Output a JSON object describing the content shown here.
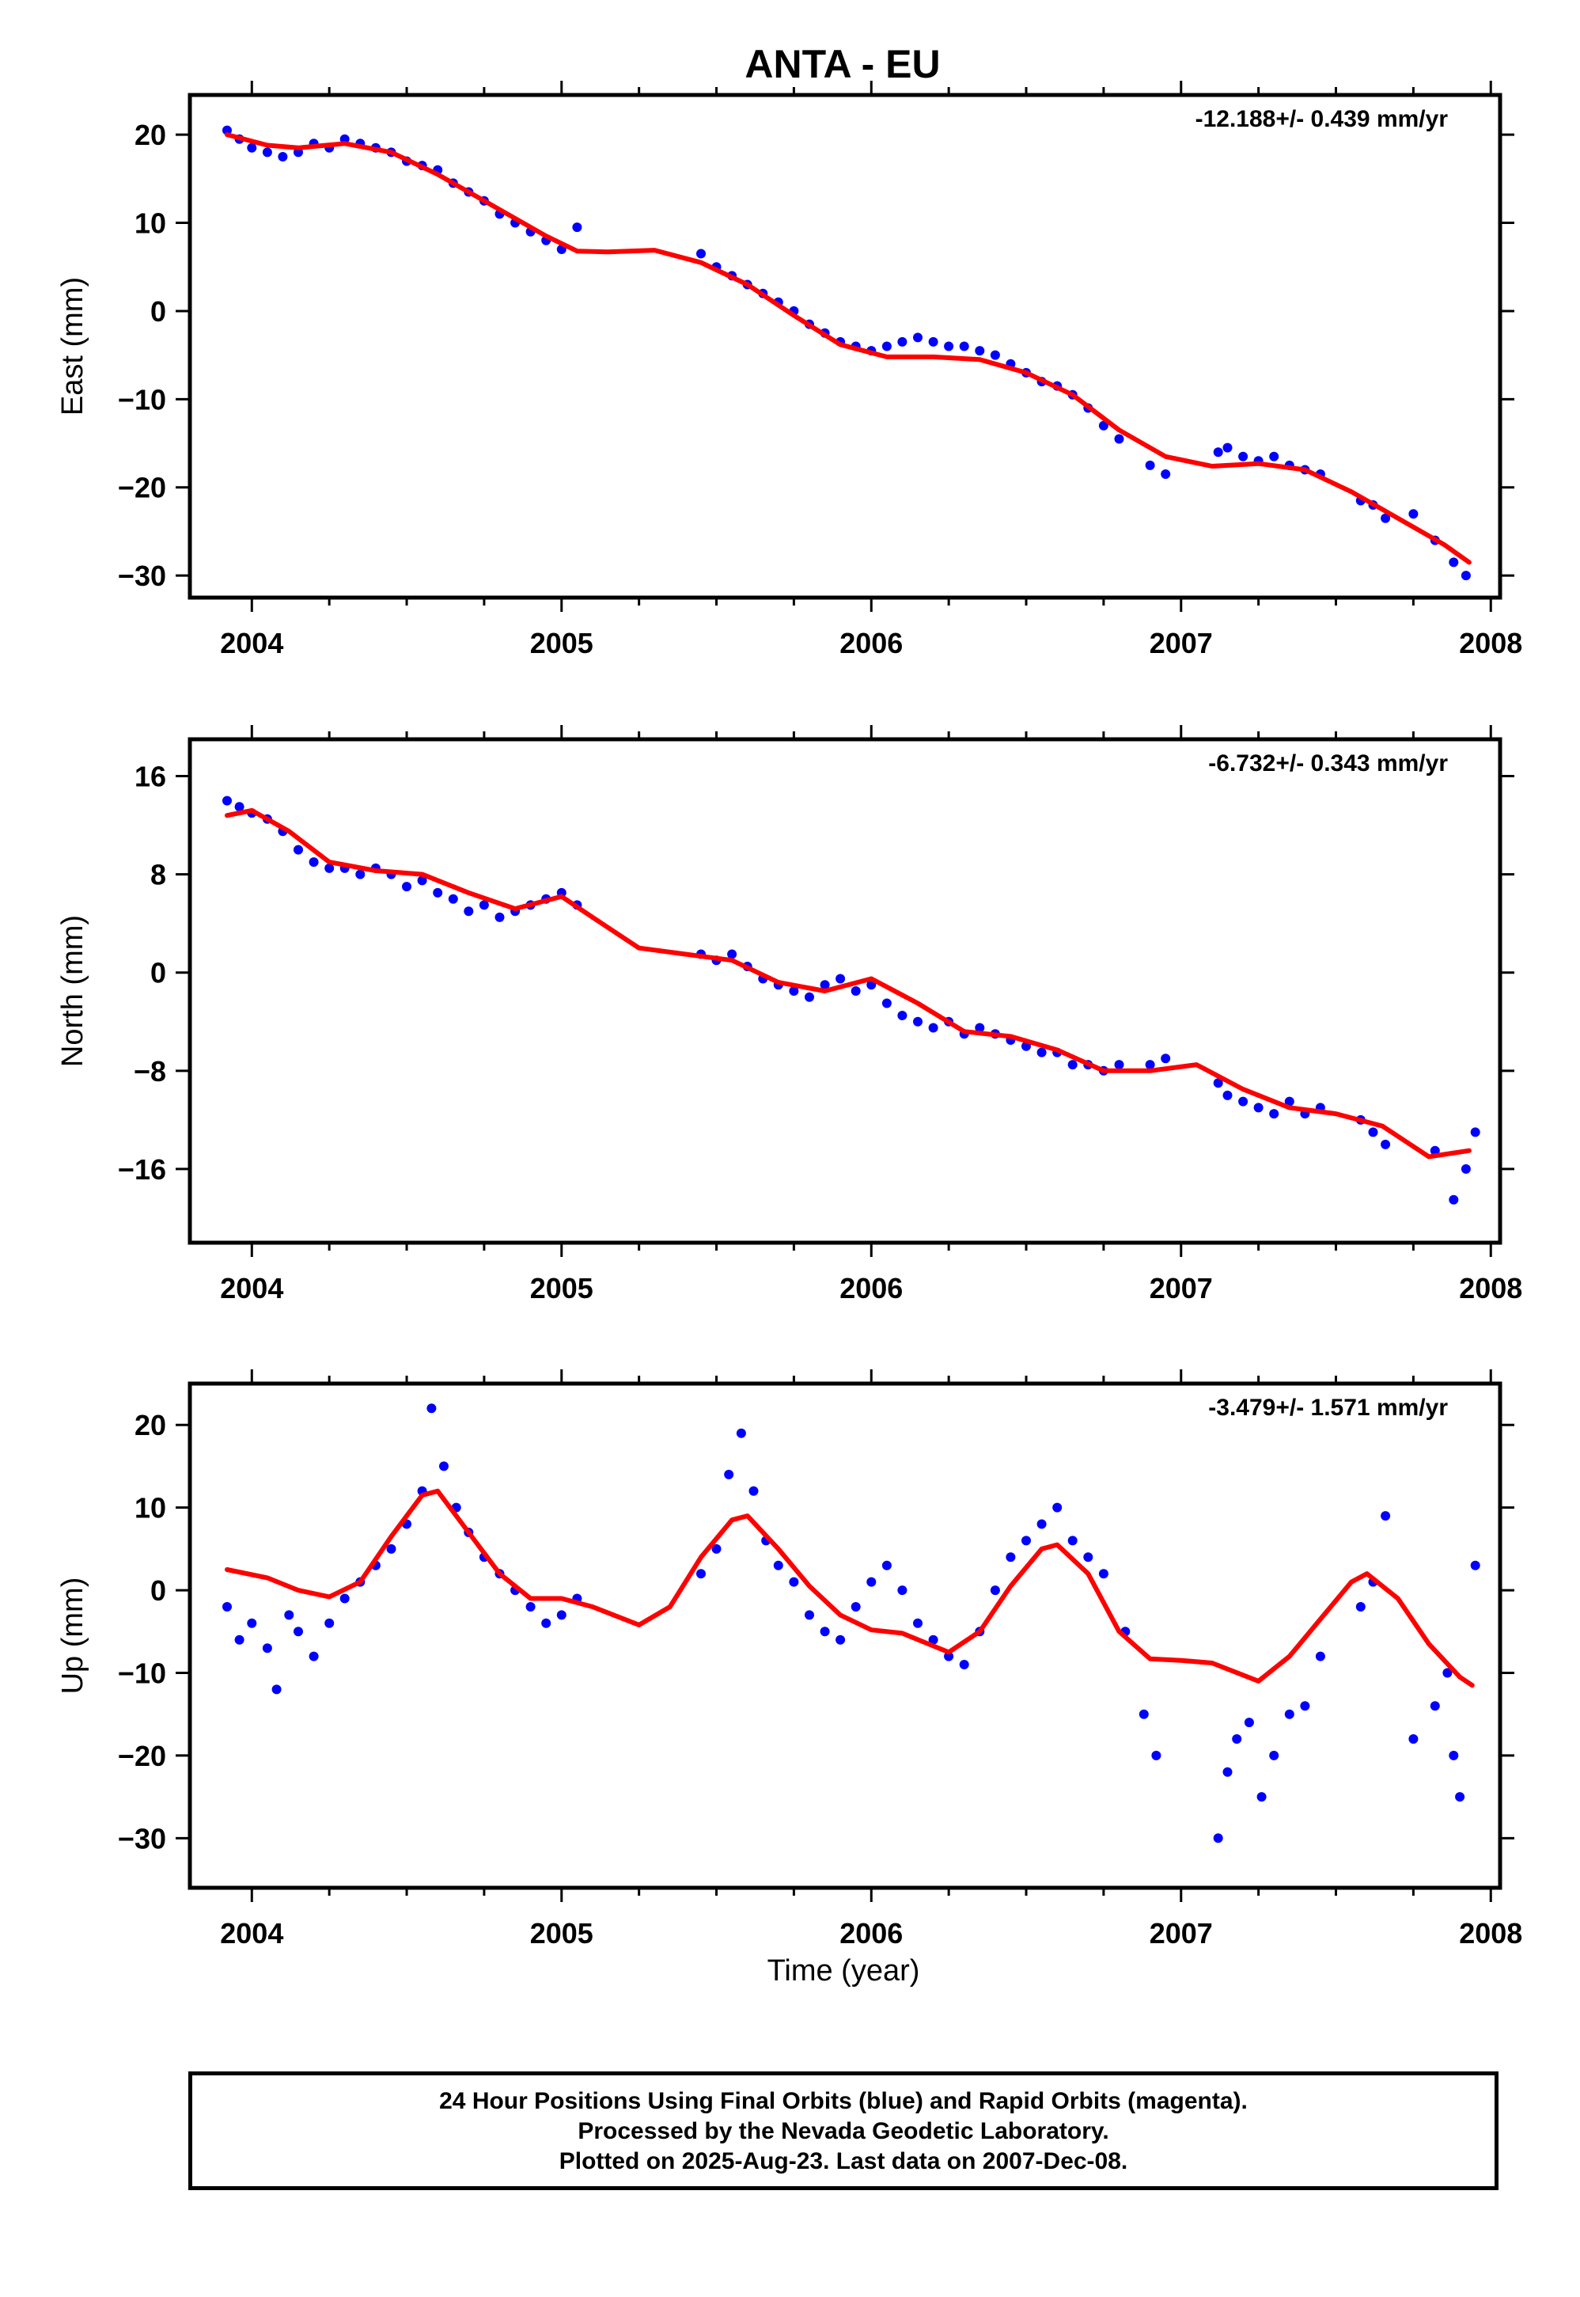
{
  "title": "ANTA - EU",
  "x_axis_label": "Time (year)",
  "caption": [
    "24 Hour Positions Using Final Orbits (blue) and Rapid Orbits (magenta).",
    "Processed by the Nevada Geodetic Laboratory.",
    "Plotted on 2025-Aug-23. Last data on 2007-Dec-08."
  ],
  "colors": {
    "points": "#0000ff",
    "fit": "#ff0000",
    "axes": "#000000"
  },
  "chart_data": [
    {
      "type": "scatter",
      "ylabel": "East (mm)",
      "rate": "-12.188+/- 0.439 mm/yr",
      "xlim": [
        2003.8,
        2008.03
      ],
      "ylim": [
        -32.5,
        24.5
      ],
      "x_ticks": [
        2004,
        2005,
        2006,
        2007,
        2008
      ],
      "y_ticks": [
        -30,
        -20,
        -10,
        0,
        10,
        20
      ],
      "grid": false,
      "series": [
        {
          "style": "points",
          "x": [
            2003.92,
            2003.96,
            2004.0,
            2004.05,
            2004.1,
            2004.15,
            2004.2,
            2004.25,
            2004.3,
            2004.35,
            2004.4,
            2004.45,
            2004.5,
            2004.55,
            2004.6,
            2004.65,
            2004.7,
            2004.75,
            2004.8,
            2004.85,
            2004.9,
            2004.95,
            2005.0,
            2005.05,
            2005.45,
            2005.5,
            2005.55,
            2005.6,
            2005.65,
            2005.7,
            2005.75,
            2005.8,
            2005.85,
            2005.9,
            2005.95,
            2006.0,
            2006.05,
            2006.1,
            2006.15,
            2006.2,
            2006.25,
            2006.3,
            2006.35,
            2006.4,
            2006.45,
            2006.5,
            2006.55,
            2006.6,
            2006.65,
            2006.7,
            2006.75,
            2006.8,
            2006.9,
            2006.95,
            2007.12,
            2007.15,
            2007.2,
            2007.25,
            2007.3,
            2007.35,
            2007.4,
            2007.45,
            2007.58,
            2007.62,
            2007.66,
            2007.75,
            2007.82,
            2007.88,
            2007.92
          ],
          "y": [
            20.5,
            19.5,
            18.5,
            18.0,
            17.5,
            18.0,
            19.0,
            18.5,
            19.5,
            19.0,
            18.5,
            18.0,
            17.0,
            16.5,
            16.0,
            14.5,
            13.5,
            12.5,
            11.0,
            10.0,
            9.0,
            8.0,
            7.0,
            9.5,
            6.5,
            5.0,
            4.0,
            3.0,
            2.0,
            1.0,
            0.0,
            -1.5,
            -2.5,
            -3.5,
            -4.0,
            -4.5,
            -4.0,
            -3.5,
            -3.0,
            -3.5,
            -4.0,
            -4.0,
            -4.5,
            -5.0,
            -6.0,
            -7.0,
            -8.0,
            -8.5,
            -9.5,
            -11.0,
            -13.0,
            -14.5,
            -17.5,
            -18.5,
            -16.0,
            -15.5,
            -16.5,
            -17.0,
            -16.5,
            -17.5,
            -18.0,
            -18.5,
            -21.5,
            -22.0,
            -23.5,
            -23.0,
            -26.0,
            -28.5,
            -30.0
          ]
        },
        {
          "style": "fit",
          "x": [
            2003.92,
            2004.05,
            2004.15,
            2004.3,
            2004.45,
            2004.6,
            2004.8,
            2004.95,
            2005.05,
            2005.15,
            2005.3,
            2005.45,
            2005.6,
            2005.75,
            2005.9,
            2006.05,
            2006.2,
            2006.35,
            2006.5,
            2006.65,
            2006.8,
            2006.95,
            2007.1,
            2007.25,
            2007.4,
            2007.55,
            2007.7,
            2007.85,
            2007.93
          ],
          "y": [
            20.0,
            18.8,
            18.5,
            19.0,
            18.0,
            15.5,
            11.5,
            8.5,
            6.8,
            6.7,
            6.9,
            5.5,
            3.0,
            -0.5,
            -3.8,
            -5.2,
            -5.2,
            -5.5,
            -7.0,
            -9.5,
            -13.5,
            -16.5,
            -17.6,
            -17.3,
            -18.0,
            -20.5,
            -23.5,
            -26.5,
            -28.5
          ]
        }
      ]
    },
    {
      "type": "scatter",
      "ylabel": "North (mm)",
      "rate": "-6.732+/- 0.343 mm/yr",
      "xlim": [
        2003.8,
        2008.03
      ],
      "ylim": [
        -22,
        19
      ],
      "x_ticks": [
        2004,
        2005,
        2006,
        2007,
        2008
      ],
      "y_ticks": [
        -16,
        -8,
        0,
        8,
        16
      ],
      "grid": false,
      "series": [
        {
          "style": "points",
          "x": [
            2003.92,
            2003.96,
            2004.0,
            2004.05,
            2004.1,
            2004.15,
            2004.2,
            2004.25,
            2004.3,
            2004.35,
            2004.4,
            2004.45,
            2004.5,
            2004.55,
            2004.6,
            2004.65,
            2004.7,
            2004.75,
            2004.8,
            2004.85,
            2004.9,
            2004.95,
            2005.0,
            2005.05,
            2005.45,
            2005.5,
            2005.55,
            2005.6,
            2005.65,
            2005.7,
            2005.75,
            2005.8,
            2005.85,
            2005.9,
            2005.95,
            2006.0,
            2006.05,
            2006.1,
            2006.15,
            2006.2,
            2006.25,
            2006.3,
            2006.35,
            2006.4,
            2006.45,
            2006.5,
            2006.55,
            2006.6,
            2006.65,
            2006.7,
            2006.75,
            2006.8,
            2006.9,
            2006.95,
            2007.12,
            2007.15,
            2007.2,
            2007.25,
            2007.3,
            2007.35,
            2007.4,
            2007.45,
            2007.58,
            2007.62,
            2007.66,
            2007.82,
            2007.88,
            2007.92,
            2007.95
          ],
          "y": [
            14.0,
            13.5,
            13.0,
            12.5,
            11.5,
            10.0,
            9.0,
            8.5,
            8.5,
            8.0,
            8.5,
            8.0,
            7.0,
            7.5,
            6.5,
            6.0,
            5.0,
            5.5,
            4.5,
            5.0,
            5.5,
            6.0,
            6.5,
            5.5,
            1.5,
            1.0,
            1.5,
            0.5,
            -0.5,
            -1.0,
            -1.5,
            -2.0,
            -1.0,
            -0.5,
            -1.5,
            -1.0,
            -2.5,
            -3.5,
            -4.0,
            -4.5,
            -4.0,
            -5.0,
            -4.5,
            -5.0,
            -5.5,
            -6.0,
            -6.5,
            -6.5,
            -7.5,
            -7.5,
            -8.0,
            -7.5,
            -7.5,
            -7.0,
            -9.0,
            -10.0,
            -10.5,
            -11.0,
            -11.5,
            -10.5,
            -11.5,
            -11.0,
            -12.0,
            -13.0,
            -14.0,
            -14.5,
            -18.5,
            -16.0,
            -13.0
          ]
        },
        {
          "style": "fit",
          "x": [
            2003.92,
            2004.0,
            2004.12,
            2004.25,
            2004.4,
            2004.55,
            2004.7,
            2004.85,
            2005.0,
            2005.1,
            2005.25,
            2005.4,
            2005.55,
            2005.7,
            2005.85,
            2006.0,
            2006.15,
            2006.3,
            2006.45,
            2006.6,
            2006.75,
            2006.9,
            2007.05,
            2007.2,
            2007.35,
            2007.5,
            2007.65,
            2007.8,
            2007.93
          ],
          "y": [
            12.8,
            13.2,
            11.5,
            9.0,
            8.3,
            8.0,
            6.5,
            5.2,
            6.2,
            4.5,
            2.0,
            1.5,
            1.0,
            -0.8,
            -1.5,
            -0.5,
            -2.5,
            -4.8,
            -5.2,
            -6.3,
            -8.0,
            -8.0,
            -7.5,
            -9.5,
            -11.0,
            -11.5,
            -12.5,
            -15.0,
            -14.5
          ]
        }
      ]
    },
    {
      "type": "scatter",
      "ylabel": "Up (mm)",
      "rate": "-3.479+/- 1.571 mm/yr",
      "xlim": [
        2003.8,
        2008.03
      ],
      "ylim": [
        -36,
        25
      ],
      "x_ticks": [
        2004,
        2005,
        2006,
        2007,
        2008
      ],
      "y_ticks": [
        -30,
        -20,
        -10,
        0,
        10,
        20
      ],
      "grid": false,
      "series": [
        {
          "style": "points",
          "x": [
            2003.92,
            2003.96,
            2004.0,
            2004.05,
            2004.08,
            2004.12,
            2004.15,
            2004.2,
            2004.25,
            2004.3,
            2004.35,
            2004.4,
            2004.45,
            2004.5,
            2004.55,
            2004.58,
            2004.62,
            2004.66,
            2004.7,
            2004.75,
            2004.8,
            2004.85,
            2004.9,
            2004.95,
            2005.0,
            2005.05,
            2005.45,
            2005.5,
            2005.54,
            2005.58,
            2005.62,
            2005.66,
            2005.7,
            2005.75,
            2005.8,
            2005.85,
            2005.9,
            2005.95,
            2006.0,
            2006.05,
            2006.1,
            2006.15,
            2006.2,
            2006.25,
            2006.3,
            2006.35,
            2006.4,
            2006.45,
            2006.5,
            2006.55,
            2006.6,
            2006.65,
            2006.7,
            2006.75,
            2006.82,
            2006.88,
            2006.92,
            2007.12,
            2007.15,
            2007.18,
            2007.22,
            2007.26,
            2007.3,
            2007.35,
            2007.4,
            2007.45,
            2007.58,
            2007.62,
            2007.66,
            2007.75,
            2007.82,
            2007.86,
            2007.88,
            2007.9,
            2007.95
          ],
          "y": [
            -2.0,
            -6.0,
            -4.0,
            -7.0,
            -12.0,
            -3.0,
            -5.0,
            -8.0,
            -4.0,
            -1.0,
            1.0,
            3.0,
            5.0,
            8.0,
            12.0,
            22.0,
            15.0,
            10.0,
            7.0,
            4.0,
            2.0,
            0.0,
            -2.0,
            -4.0,
            -3.0,
            -1.0,
            2.0,
            5.0,
            14.0,
            19.0,
            12.0,
            6.0,
            3.0,
            1.0,
            -3.0,
            -5.0,
            -6.0,
            -2.0,
            1.0,
            3.0,
            0.0,
            -4.0,
            -6.0,
            -8.0,
            -9.0,
            -5.0,
            0.0,
            4.0,
            6.0,
            8.0,
            10.0,
            6.0,
            4.0,
            2.0,
            -5.0,
            -15.0,
            -20.0,
            -30.0,
            -22.0,
            -18.0,
            -16.0,
            -25.0,
            -20.0,
            -15.0,
            -14.0,
            -8.0,
            -2.0,
            1.0,
            9.0,
            -18.0,
            -14.0,
            -10.0,
            -20.0,
            -25.0,
            3.0
          ]
        },
        {
          "style": "fit",
          "x": [
            2003.92,
            2004.05,
            2004.15,
            2004.25,
            2004.35,
            2004.45,
            2004.55,
            2004.6,
            2004.7,
            2004.8,
            2004.9,
            2005.0,
            2005.1,
            2005.25,
            2005.35,
            2005.45,
            2005.55,
            2005.6,
            2005.7,
            2005.8,
            2005.9,
            2006.0,
            2006.1,
            2006.25,
            2006.35,
            2006.45,
            2006.55,
            2006.6,
            2006.7,
            2006.8,
            2006.9,
            2007.0,
            2007.1,
            2007.25,
            2007.35,
            2007.45,
            2007.55,
            2007.6,
            2007.7,
            2007.8,
            2007.9,
            2007.94
          ],
          "y": [
            2.5,
            1.5,
            0.0,
            -0.8,
            1.0,
            6.5,
            11.5,
            12.0,
            7.0,
            2.0,
            -1.0,
            -1.0,
            -2.0,
            -4.2,
            -2.0,
            4.0,
            8.5,
            9.0,
            5.0,
            0.5,
            -3.0,
            -4.8,
            -5.2,
            -7.5,
            -5.0,
            0.5,
            5.0,
            5.5,
            2.0,
            -5.0,
            -8.3,
            -8.5,
            -8.8,
            -11.0,
            -8.0,
            -3.5,
            1.0,
            2.0,
            -1.0,
            -6.5,
            -10.5,
            -11.5
          ]
        }
      ]
    }
  ]
}
